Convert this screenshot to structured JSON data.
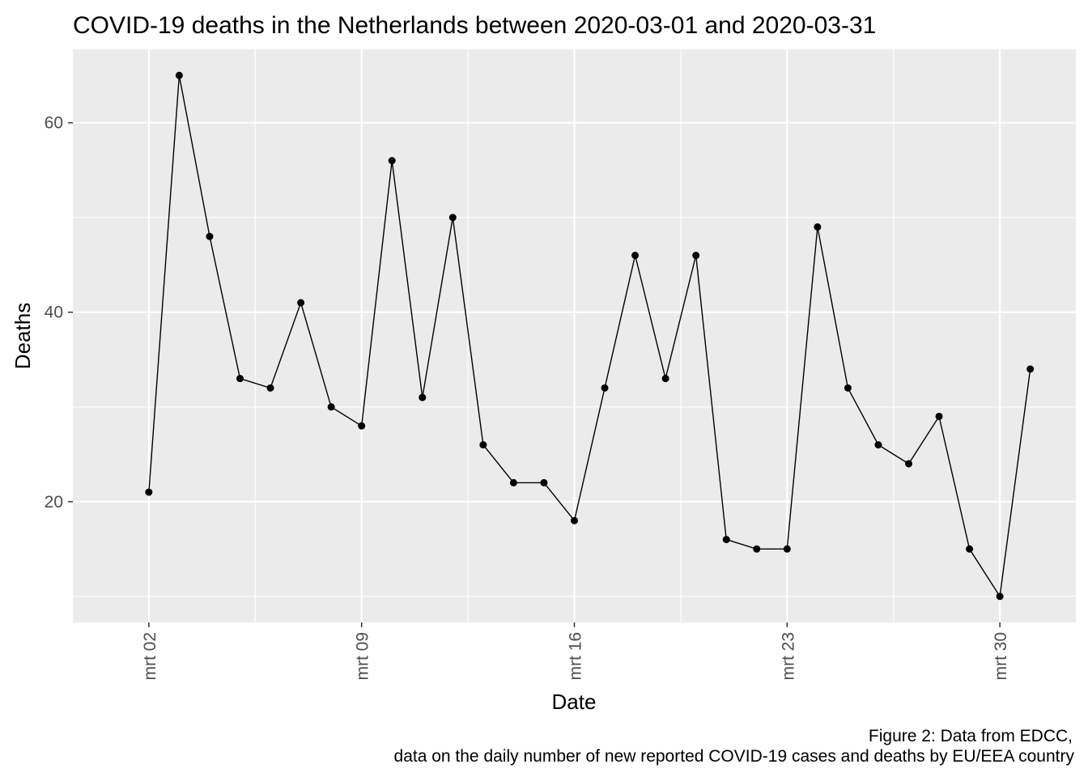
{
  "chart_data": {
    "type": "line",
    "title": "COVID-19 deaths in the Netherlands between 2020-03-01 and 2020-03-31",
    "xlabel": "Date",
    "ylabel": "Deaths",
    "caption": [
      "Figure 2: Data from EDCC,",
      "data on the daily number of new reported COVID-19 cases and deaths by EU/EEA country"
    ],
    "x": [
      "2020-03-02",
      "2020-03-03",
      "2020-03-04",
      "2020-03-05",
      "2020-03-06",
      "2020-03-07",
      "2020-03-08",
      "2020-03-09",
      "2020-03-10",
      "2020-03-11",
      "2020-03-12",
      "2020-03-13",
      "2020-03-14",
      "2020-03-15",
      "2020-03-16",
      "2020-03-17",
      "2020-03-18",
      "2020-03-19",
      "2020-03-20",
      "2020-03-21",
      "2020-03-22",
      "2020-03-23",
      "2020-03-24",
      "2020-03-25",
      "2020-03-26",
      "2020-03-27",
      "2020-03-28",
      "2020-03-29",
      "2020-03-30",
      "2020-03-31"
    ],
    "y": [
      21,
      65,
      48,
      33,
      32,
      41,
      30,
      28,
      56,
      31,
      50,
      26,
      22,
      22,
      18,
      32,
      46,
      33,
      46,
      16,
      15,
      15,
      49,
      32,
      26,
      24,
      29,
      15,
      10,
      34
    ],
    "xticks": [
      {
        "date": "2020-03-02",
        "label": "mrt 02"
      },
      {
        "date": "2020-03-09",
        "label": "mrt 09"
      },
      {
        "date": "2020-03-16",
        "label": "mrt 16"
      },
      {
        "date": "2020-03-23",
        "label": "mrt 23"
      },
      {
        "date": "2020-03-30",
        "label": "mrt 30"
      }
    ],
    "yticks": [
      20,
      40,
      60
    ],
    "xlim": [
      "2020-03-01",
      "2020-03-31"
    ],
    "ylim": [
      7.25,
      67.75
    ],
    "grid": true,
    "legend": "none",
    "colors": {
      "panel_background": "#ebebeb",
      "grid": "#ffffff",
      "line": "#000000",
      "point": "#000000",
      "tick_label": "#4d4d4d",
      "tick_mark": "#333333"
    }
  }
}
